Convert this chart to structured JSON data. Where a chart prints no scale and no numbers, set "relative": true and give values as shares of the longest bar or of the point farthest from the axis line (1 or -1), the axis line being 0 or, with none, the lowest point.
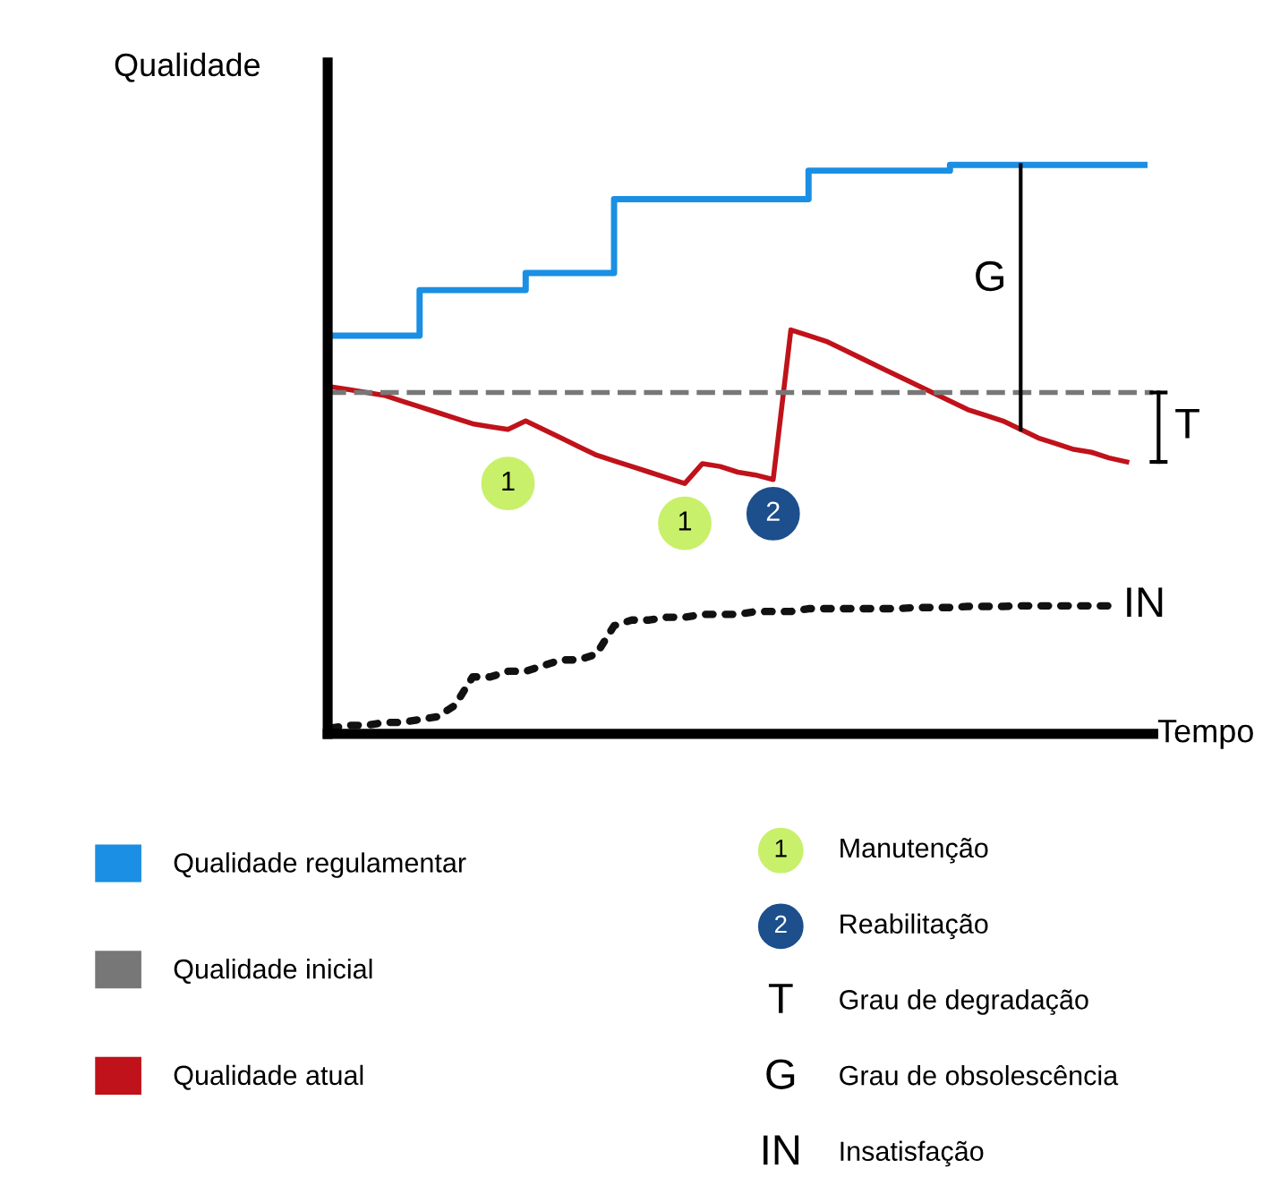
{
  "chart_data": {
    "type": "line",
    "relative": true,
    "xlabel": "Tempo",
    "ylabel": "Qualidade",
    "legend": "bottom",
    "categories": [
      null,
      null,
      null,
      null,
      null,
      null,
      null,
      null,
      null,
      null,
      null,
      null,
      null,
      null,
      null,
      null,
      null,
      null,
      null,
      null,
      null,
      null,
      null,
      null,
      null,
      null,
      null,
      null,
      null,
      null,
      null,
      null,
      null,
      null,
      null,
      null,
      null,
      null,
      null,
      null,
      null,
      null,
      null,
      null,
      null,
      null,
      null
    ],
    "series": [
      {
        "name": "Qualidade regulamentar",
        "type": "step",
        "color": "#1a8fe3",
        "line_style": "solid",
        "values": [
          0.7,
          0.7,
          0.7,
          0.7,
          0.7,
          0.78,
          0.78,
          0.78,
          0.78,
          0.78,
          0.78,
          0.81,
          0.81,
          0.81,
          0.81,
          0.81,
          0.94,
          0.94,
          0.94,
          0.94,
          0.94,
          0.94,
          0.94,
          0.94,
          0.94,
          0.94,
          0.94,
          0.99,
          0.99,
          0.99,
          0.99,
          0.99,
          0.99,
          0.99,
          0.99,
          1.0,
          1.0,
          1.0,
          1.0,
          1.0,
          1.0,
          1.0,
          1.0,
          1.0,
          1.0,
          1.0,
          1.0
        ]
      },
      {
        "name": "Qualidade atual",
        "type": "line",
        "color": "#c0121a",
        "line_style": "solid",
        "values": [
          0.61,
          0.605,
          0.6,
          0.595,
          0.585,
          0.575,
          0.565,
          0.555,
          0.545,
          0.54,
          0.535,
          0.55,
          0.535,
          0.52,
          0.505,
          0.49,
          0.48,
          0.47,
          0.46,
          0.45,
          0.44,
          0.475,
          0.47,
          0.46,
          0.455,
          0.447,
          0.71,
          0.7,
          0.69,
          0.675,
          0.66,
          0.645,
          0.63,
          0.615,
          0.6,
          0.585,
          0.57,
          0.56,
          0.55,
          0.535,
          0.52,
          0.51,
          0.5,
          0.495,
          0.485,
          0.478,
          null
        ]
      },
      {
        "name": "IN",
        "type": "line",
        "color": "#111111",
        "line_style": "dotted",
        "values": [
          0.01,
          0.015,
          0.015,
          0.02,
          0.02,
          0.025,
          0.03,
          0.05,
          0.1,
          0.1,
          0.11,
          0.11,
          0.12,
          0.13,
          0.13,
          0.14,
          0.19,
          0.2,
          0.2,
          0.205,
          0.205,
          0.21,
          0.21,
          0.21,
          0.215,
          0.215,
          0.215,
          0.22,
          0.22,
          0.22,
          0.22,
          0.22,
          0.22,
          0.222,
          0.222,
          0.222,
          0.224,
          0.224,
          0.224,
          0.225,
          0.225,
          0.225,
          0.225,
          0.225,
          0.225,
          null,
          null
        ]
      }
    ],
    "ref_lines": [
      {
        "axis": "y",
        "value": 0.6,
        "label": "Qualidade inicial",
        "color": "#777777",
        "line_style": "dashed"
      }
    ],
    "annotations": [
      {
        "text": "1",
        "y": 0.44
      },
      {
        "text": "1",
        "y": 0.37
      },
      {
        "text": "2",
        "y": 0.387
      },
      "G",
      "T",
      "Manutenção",
      "Reabilitação",
      "T",
      "Grau de degradação",
      "G",
      "Grau de obsolescência",
      "IN",
      "Insatisfação"
    ]
  }
}
